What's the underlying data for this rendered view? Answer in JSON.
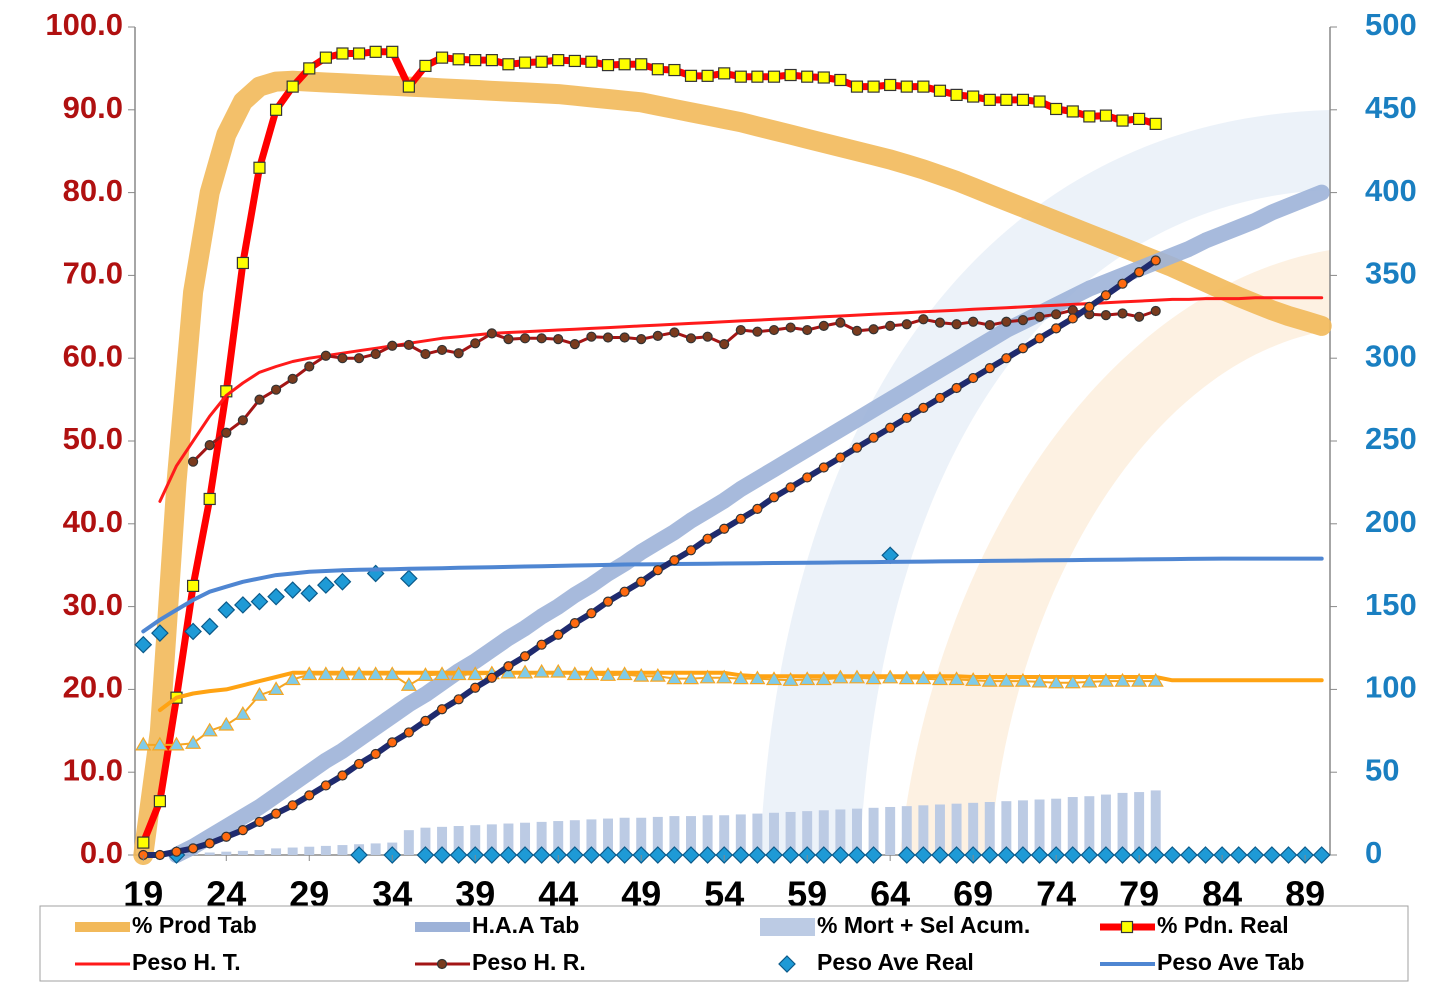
{
  "chart_data": {
    "type": "combo",
    "x": [
      19,
      20,
      21,
      22,
      23,
      24,
      25,
      26,
      27,
      28,
      29,
      30,
      31,
      32,
      33,
      34,
      35,
      36,
      37,
      38,
      39,
      40,
      41,
      42,
      43,
      44,
      45,
      46,
      47,
      48,
      49,
      50,
      51,
      52,
      53,
      54,
      55,
      56,
      57,
      58,
      59,
      60,
      61,
      62,
      63,
      64,
      65,
      66,
      67,
      68,
      69,
      70,
      71,
      72,
      73,
      74,
      75,
      76,
      77,
      78,
      79,
      80,
      81,
      82,
      83,
      84,
      85,
      86,
      87,
      88,
      89,
      90
    ],
    "xlim": [
      18.5,
      90.5
    ],
    "xticks": [
      19,
      24,
      29,
      34,
      39,
      44,
      49,
      54,
      59,
      64,
      69,
      74,
      79,
      84,
      89
    ],
    "ylim": [
      0,
      100
    ],
    "yticks": [
      {
        "value": 0,
        "label": "0.0"
      },
      {
        "value": 10,
        "label": "10.0"
      },
      {
        "value": 20,
        "label": "20.0"
      },
      {
        "value": 30,
        "label": "30.0"
      },
      {
        "value": 40,
        "label": "40.0"
      },
      {
        "value": 50,
        "label": "50.0"
      },
      {
        "value": 60,
        "label": "60.0"
      },
      {
        "value": 70,
        "label": "70.0"
      },
      {
        "value": 80,
        "label": "80.0"
      },
      {
        "value": 90,
        "label": "90.0"
      },
      {
        "value": 100,
        "label": "100.0"
      }
    ],
    "y2lim": [
      0,
      500
    ],
    "y2ticks": [
      0,
      50,
      100,
      150,
      200,
      250,
      300,
      350,
      400,
      450,
      500
    ],
    "y_color": "#b01010",
    "y2_color": "#1a7fc1",
    "legend": "bottom",
    "series": [
      {
        "name": "% Prod Tab",
        "type": "line",
        "color": "#f2b95a",
        "width": 20,
        "values": [
          0,
          15,
          45,
          68,
          80,
          87,
          91,
          92.8,
          93.4,
          93.5,
          93.4,
          93.3,
          93.2,
          93.1,
          93,
          92.9,
          92.8,
          92.7,
          92.6,
          92.5,
          92.4,
          92.3,
          92.2,
          92.1,
          92,
          91.9,
          91.7,
          91.5,
          91.3,
          91.1,
          90.9,
          90.5,
          90.1,
          89.7,
          89.3,
          88.9,
          88.5,
          88,
          87.5,
          87,
          86.5,
          86,
          85.5,
          85,
          84.5,
          84,
          83.4,
          82.8,
          82.1,
          81.4,
          80.6,
          79.8,
          79,
          78.2,
          77.4,
          76.6,
          75.8,
          75,
          74.2,
          73.4,
          72.6,
          71.8,
          71,
          70.1,
          69.2,
          68.3,
          67.4,
          66.6,
          65.8,
          65.1,
          64.5,
          63.9
        ]
      },
      {
        "name": "H.A.A Tab",
        "type": "line",
        "color": "#9db2d8",
        "width": 16,
        "axis": "y2",
        "values": [
          null,
          null,
          0,
          5,
          11,
          17,
          23,
          29,
          36,
          43,
          50,
          57,
          63,
          70,
          77,
          84,
          91,
          97,
          104,
          111,
          117,
          124,
          131,
          137,
          144,
          150,
          157,
          163,
          170,
          176,
          183,
          189,
          195,
          202,
          208,
          214,
          221,
          227,
          233,
          239,
          245,
          251,
          257,
          263,
          269,
          275,
          281,
          287,
          293,
          299,
          305,
          311,
          317,
          322,
          327,
          332,
          337,
          342,
          346,
          350,
          354,
          358,
          362,
          366,
          371,
          375,
          379,
          383,
          388,
          392,
          396,
          400
        ]
      },
      {
        "name": "% Mort + Sel Acum.",
        "type": "bar",
        "color": "#bccbe4",
        "values": [
          null,
          null,
          null,
          0.2,
          0.3,
          0.4,
          0.5,
          0.6,
          0.8,
          0.9,
          1.0,
          1.1,
          1.2,
          1.3,
          1.4,
          1.5,
          3.0,
          3.3,
          3.4,
          3.5,
          3.6,
          3.7,
          3.8,
          3.9,
          4.0,
          4.1,
          4.2,
          4.3,
          4.4,
          4.5,
          4.5,
          4.6,
          4.7,
          4.7,
          4.8,
          4.8,
          4.9,
          5.0,
          5.1,
          5.2,
          5.3,
          5.4,
          5.5,
          5.6,
          5.7,
          5.8,
          5.9,
          6.0,
          6.1,
          6.2,
          6.3,
          6.4,
          6.5,
          6.6,
          6.7,
          6.8,
          7.0,
          7.1,
          7.3,
          7.5,
          7.6,
          7.8,
          null,
          null,
          null,
          null,
          null,
          null,
          null,
          null,
          null,
          null
        ]
      },
      {
        "name": "% Pdn. Real",
        "type": "line",
        "color": "#ff0000",
        "width": 7,
        "marker": "square",
        "marker_color": "#ffff00",
        "values": [
          1.5,
          6.5,
          19,
          32.5,
          43,
          56,
          71.5,
          83,
          90,
          92.8,
          95,
          96.3,
          96.8,
          96.8,
          97,
          97,
          92.8,
          95.3,
          96.3,
          96.1,
          96,
          96,
          95.5,
          95.7,
          95.8,
          96,
          95.9,
          95.8,
          95.4,
          95.5,
          95.5,
          94.9,
          94.8,
          94.1,
          94.1,
          94.4,
          94,
          94,
          94,
          94.2,
          94,
          93.9,
          93.6,
          92.8,
          92.8,
          93,
          92.8,
          92.8,
          92.3,
          91.8,
          91.6,
          91.2,
          91.2,
          91.2,
          91,
          90.1,
          89.8,
          89.2,
          89.3,
          88.7,
          88.9,
          88.3,
          null,
          null,
          null,
          null,
          null,
          null,
          null,
          null,
          null,
          null
        ]
      },
      {
        "name": "Peso H. T.",
        "type": "line",
        "color": "#ff1a1a",
        "width": 3,
        "values": [
          null,
          42.7,
          47,
          50,
          53,
          55.5,
          57,
          58.3,
          59,
          59.6,
          60,
          60.3,
          60.6,
          60.9,
          61.2,
          61.5,
          61.8,
          62.1,
          62.4,
          62.6,
          62.8,
          63,
          63.1,
          63.2,
          63.3,
          63.4,
          63.5,
          63.6,
          63.7,
          63.8,
          63.9,
          64,
          64.1,
          64.2,
          64.3,
          64.4,
          64.5,
          64.6,
          64.7,
          64.8,
          64.9,
          65,
          65.1,
          65.2,
          65.3,
          65.4,
          65.5,
          65.6,
          65.7,
          65.8,
          65.9,
          66,
          66.1,
          66.2,
          66.3,
          66.4,
          66.5,
          66.6,
          66.7,
          66.8,
          66.9,
          67,
          67.1,
          67.1,
          67.2,
          67.2,
          67.2,
          67.3,
          67.3,
          67.3,
          67.3,
          67.3
        ]
      },
      {
        "name": "Peso H. R.",
        "type": "line",
        "color": "#a31515",
        "width": 3,
        "marker": "circle",
        "marker_color": "#7a3b1e",
        "values": [
          null,
          null,
          null,
          47.5,
          49.5,
          51,
          52.5,
          55,
          56.2,
          57.5,
          59,
          60.3,
          60,
          60,
          60.5,
          61.5,
          61.6,
          60.5,
          61,
          60.6,
          61.8,
          63,
          62.3,
          62.4,
          62.4,
          62.3,
          61.7,
          62.6,
          62.5,
          62.5,
          62.3,
          62.7,
          63.1,
          62.4,
          62.6,
          61.7,
          63.4,
          63.2,
          63.4,
          63.7,
          63.4,
          63.9,
          64.3,
          63.3,
          63.5,
          63.9,
          64.1,
          64.7,
          64.3,
          64.1,
          64.4,
          64,
          64.4,
          64.6,
          65,
          65.3,
          65.8,
          65.3,
          65.2,
          65.4,
          65,
          65.7,
          null,
          null,
          null,
          null,
          null,
          null,
          null,
          null,
          null,
          null
        ]
      },
      {
        "name": "Peso Ave Real",
        "type": "scatter",
        "color": "#1e9ad6",
        "marker": "diamond",
        "marker_color": "#1e9ad6",
        "axis": "y2",
        "values": [
          127,
          134,
          0,
          135,
          138,
          148,
          151,
          153,
          156,
          160,
          158,
          163,
          165,
          0,
          170,
          0,
          167,
          0,
          0,
          0,
          0,
          0,
          0,
          0,
          0,
          0,
          0,
          0,
          0,
          0,
          0,
          0,
          0,
          0,
          0,
          0,
          0,
          0,
          0,
          0,
          0,
          0,
          0,
          0,
          0,
          181,
          0,
          0,
          0,
          0,
          0,
          0,
          0,
          0,
          0,
          0,
          0,
          0,
          0,
          0,
          0,
          0,
          0,
          0,
          0,
          0,
          0,
          0,
          0,
          0,
          0,
          0
        ]
      },
      {
        "name": "Peso Ave Tab",
        "type": "line",
        "color": "#4f86d2",
        "width": 4,
        "axis": "y2",
        "values": [
          135,
          142,
          148,
          154,
          159,
          162,
          165,
          167,
          169,
          170,
          171,
          171.5,
          172,
          172.2,
          172.4,
          172.6,
          172.8,
          173,
          173.2,
          173.4,
          173.6,
          173.8,
          174,
          174.2,
          174.4,
          174.6,
          174.8,
          175,
          175.2,
          175.4,
          175.5,
          175.6,
          175.7,
          175.8,
          175.9,
          176,
          176.1,
          176.2,
          176.3,
          176.4,
          176.5,
          176.6,
          176.7,
          176.8,
          176.9,
          177,
          177.1,
          177.2,
          177.3,
          177.4,
          177.5,
          177.6,
          177.7,
          177.8,
          177.9,
          178,
          178.1,
          178.2,
          178.3,
          178.4,
          178.5,
          178.6,
          178.7,
          178.8,
          178.9,
          179,
          179,
          179,
          179,
          179,
          179,
          179
        ]
      },
      {
        "type": "line",
        "color": "#ffa313",
        "width": 4,
        "values": [
          null,
          17.5,
          19,
          19.5,
          19.8,
          20,
          20.5,
          21,
          21.5,
          22,
          22,
          22,
          22,
          22,
          22,
          22,
          22,
          22,
          22,
          22,
          22,
          22,
          22,
          22,
          22,
          22,
          22,
          22,
          22,
          22,
          22,
          22,
          22,
          22,
          22,
          22,
          21.7,
          21.6,
          21.6,
          21.6,
          21.6,
          21.6,
          21.6,
          21.6,
          21.6,
          21.6,
          21.6,
          21.6,
          21.6,
          21.6,
          21.5,
          21.5,
          21.5,
          21.5,
          21.5,
          21.5,
          21.5,
          21.5,
          21.5,
          21.5,
          21.5,
          21.5,
          21.1,
          21.1,
          21.1,
          21.1,
          21.1,
          21.1,
          21.1,
          21.1,
          21.1,
          21.1
        ]
      },
      {
        "type": "line",
        "color": "#f5a623",
        "width": 2,
        "marker": "triangle",
        "marker_color": "#7fcbe9",
        "values": [
          13.3,
          13.3,
          13.3,
          13.5,
          15,
          15.7,
          17,
          19.3,
          20,
          21.2,
          21.8,
          21.8,
          21.8,
          21.8,
          21.8,
          21.8,
          20.5,
          21.7,
          21.8,
          21.8,
          21.8,
          21.9,
          22,
          22,
          22.1,
          22.1,
          21.8,
          21.8,
          21.7,
          21.8,
          21.6,
          21.6,
          21.3,
          21.3,
          21.4,
          21.4,
          21.3,
          21.3,
          21.2,
          21.1,
          21.2,
          21.2,
          21.4,
          21.4,
          21.3,
          21.4,
          21.3,
          21.3,
          21.2,
          21.2,
          21.1,
          21,
          21,
          21,
          20.9,
          20.8,
          20.8,
          20.9,
          21,
          21,
          21,
          21,
          null,
          null,
          null,
          null,
          null,
          null,
          null,
          null,
          null,
          null
        ]
      },
      {
        "type": "line",
        "color": "#1f2a6e",
        "width": 6,
        "marker": "circle",
        "marker_color": "#ff6a10",
        "axis": "y2",
        "values": [
          0,
          0,
          2,
          4,
          7,
          11,
          15,
          20,
          25,
          30,
          36,
          42,
          48,
          55,
          61,
          68,
          74,
          81,
          88,
          94,
          101,
          107,
          114,
          120,
          127,
          133,
          140,
          146,
          153,
          159,
          165,
          172,
          178,
          184,
          191,
          197,
          203,
          209,
          216,
          222,
          228,
          234,
          240,
          246,
          252,
          258,
          264,
          270,
          276,
          282,
          288,
          294,
          300,
          306,
          312,
          318,
          324,
          331,
          338,
          345,
          352,
          359,
          null,
          null,
          null,
          null,
          null,
          null,
          null,
          null,
          null,
          null
        ]
      }
    ]
  }
}
